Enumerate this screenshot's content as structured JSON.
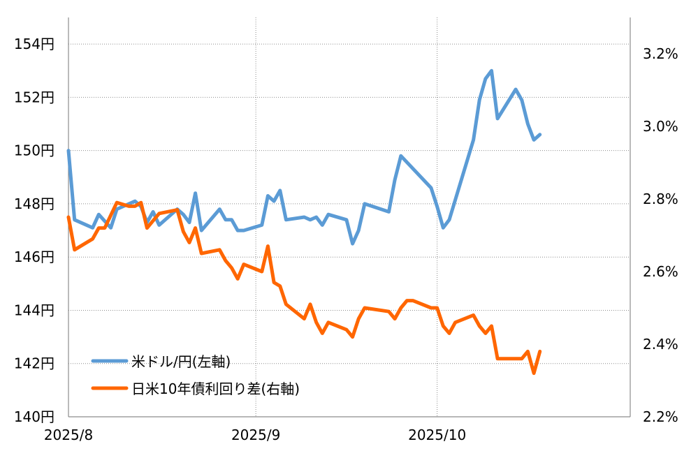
{
  "chart_data": {
    "type": "line",
    "x_ticks": [
      "2025/8",
      "2025/9",
      "2025/10"
    ],
    "y_left": {
      "ticks": [
        "140円",
        "142円",
        "144円",
        "146円",
        "148円",
        "150円",
        "152円",
        "154円"
      ],
      "min": 140,
      "max": 155,
      "step": 2
    },
    "y_right": {
      "ticks": [
        "2.2%",
        "2.4%",
        "2.6%",
        "2.8%",
        "3.0%",
        "3.2%"
      ],
      "min": 2.2,
      "max": 3.3,
      "step": 0.2
    },
    "grid": true,
    "legend_position": "bottom-left",
    "series": [
      {
        "name": "米ドル/円(左軸)",
        "axis": "left",
        "color": "#5b9bd5",
        "points": [
          [
            "2025-08-01",
            150.0
          ],
          [
            "2025-08-02",
            147.4
          ],
          [
            "2025-08-05",
            147.1
          ],
          [
            "2025-08-06",
            147.6
          ],
          [
            "2025-08-08",
            147.1
          ],
          [
            "2025-08-09",
            147.8
          ],
          [
            "2025-08-12",
            148.1
          ],
          [
            "2025-08-13",
            147.9
          ],
          [
            "2025-08-14",
            147.3
          ],
          [
            "2025-08-15",
            147.7
          ],
          [
            "2025-08-16",
            147.2
          ],
          [
            "2025-08-19",
            147.8
          ],
          [
            "2025-08-20",
            147.6
          ],
          [
            "2025-08-21",
            147.3
          ],
          [
            "2025-08-22",
            148.4
          ],
          [
            "2025-08-23",
            147.0
          ],
          [
            "2025-08-26",
            147.8
          ],
          [
            "2025-08-27",
            147.4
          ],
          [
            "2025-08-28",
            147.4
          ],
          [
            "2025-08-29",
            147.0
          ],
          [
            "2025-08-30",
            147.0
          ],
          [
            "2025-09-02",
            147.2
          ],
          [
            "2025-09-03",
            148.3
          ],
          [
            "2025-09-04",
            148.1
          ],
          [
            "2025-09-05",
            148.5
          ],
          [
            "2025-09-06",
            147.4
          ],
          [
            "2025-09-09",
            147.5
          ],
          [
            "2025-09-10",
            147.4
          ],
          [
            "2025-09-11",
            147.5
          ],
          [
            "2025-09-12",
            147.2
          ],
          [
            "2025-09-13",
            147.6
          ],
          [
            "2025-09-16",
            147.4
          ],
          [
            "2025-09-17",
            146.5
          ],
          [
            "2025-09-18",
            147.0
          ],
          [
            "2025-09-19",
            148.0
          ],
          [
            "2025-09-23",
            147.7
          ],
          [
            "2025-09-24",
            148.9
          ],
          [
            "2025-09-25",
            149.8
          ],
          [
            "2025-09-30",
            148.6
          ],
          [
            "2025-10-01",
            147.9
          ],
          [
            "2025-10-02",
            147.1
          ],
          [
            "2025-10-03",
            147.4
          ],
          [
            "2025-10-07",
            150.4
          ],
          [
            "2025-10-08",
            151.9
          ],
          [
            "2025-10-09",
            152.7
          ],
          [
            "2025-10-10",
            153.0
          ],
          [
            "2025-10-11",
            151.2
          ],
          [
            "2025-10-14",
            152.3
          ],
          [
            "2025-10-15",
            151.9
          ],
          [
            "2025-10-16",
            151.0
          ],
          [
            "2025-10-17",
            150.4
          ],
          [
            "2025-10-18",
            150.6
          ]
        ]
      },
      {
        "name": "日米10年債利回り差(右軸)",
        "axis": "right",
        "color": "#ff6600",
        "points": [
          [
            "2025-08-01",
            2.75
          ],
          [
            "2025-08-02",
            2.66
          ],
          [
            "2025-08-05",
            2.69
          ],
          [
            "2025-08-06",
            2.72
          ],
          [
            "2025-08-07",
            2.72
          ],
          [
            "2025-08-09",
            2.79
          ],
          [
            "2025-08-11",
            2.78
          ],
          [
            "2025-08-12",
            2.78
          ],
          [
            "2025-08-13",
            2.79
          ],
          [
            "2025-08-14",
            2.72
          ],
          [
            "2025-08-15",
            2.74
          ],
          [
            "2025-08-16",
            2.76
          ],
          [
            "2025-08-19",
            2.77
          ],
          [
            "2025-08-20",
            2.71
          ],
          [
            "2025-08-21",
            2.68
          ],
          [
            "2025-08-22",
            2.72
          ],
          [
            "2025-08-23",
            2.65
          ],
          [
            "2025-08-26",
            2.66
          ],
          [
            "2025-08-27",
            2.63
          ],
          [
            "2025-08-28",
            2.61
          ],
          [
            "2025-08-29",
            2.58
          ],
          [
            "2025-08-30",
            2.62
          ],
          [
            "2025-09-02",
            2.6
          ],
          [
            "2025-09-03",
            2.67
          ],
          [
            "2025-09-04",
            2.57
          ],
          [
            "2025-09-05",
            2.56
          ],
          [
            "2025-09-06",
            2.51
          ],
          [
            "2025-09-09",
            2.47
          ],
          [
            "2025-09-10",
            2.51
          ],
          [
            "2025-09-11",
            2.46
          ],
          [
            "2025-09-12",
            2.43
          ],
          [
            "2025-09-13",
            2.46
          ],
          [
            "2025-09-16",
            2.44
          ],
          [
            "2025-09-17",
            2.42
          ],
          [
            "2025-09-18",
            2.47
          ],
          [
            "2025-09-19",
            2.5
          ],
          [
            "2025-09-23",
            2.49
          ],
          [
            "2025-09-24",
            2.47
          ],
          [
            "2025-09-25",
            2.5
          ],
          [
            "2025-09-26",
            2.52
          ],
          [
            "2025-09-27",
            2.52
          ],
          [
            "2025-09-30",
            2.5
          ],
          [
            "2025-10-01",
            2.5
          ],
          [
            "2025-10-02",
            2.45
          ],
          [
            "2025-10-03",
            2.43
          ],
          [
            "2025-10-04",
            2.46
          ],
          [
            "2025-10-07",
            2.48
          ],
          [
            "2025-10-08",
            2.45
          ],
          [
            "2025-10-09",
            2.43
          ],
          [
            "2025-10-10",
            2.45
          ],
          [
            "2025-10-11",
            2.36
          ],
          [
            "2025-10-15",
            2.36
          ],
          [
            "2025-10-16",
            2.38
          ],
          [
            "2025-10-17",
            2.32
          ],
          [
            "2025-10-18",
            2.38
          ]
        ]
      }
    ]
  }
}
